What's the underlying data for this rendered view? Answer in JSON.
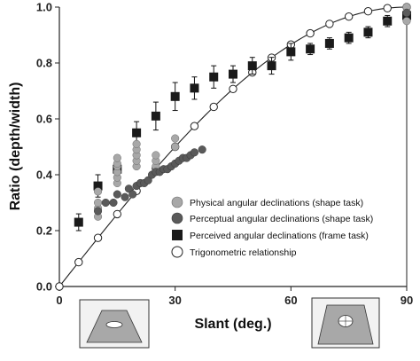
{
  "chart_data": {
    "type": "scatter",
    "xlabel": "Slant (deg.)",
    "ylabel": "Ratio (depth/width)",
    "xlim": [
      0,
      90
    ],
    "ylim": [
      0.0,
      1.0
    ],
    "x_ticks": [
      0,
      30,
      60,
      90
    ],
    "y_ticks": [
      0.0,
      0.2,
      0.4,
      0.6,
      0.8,
      1.0
    ],
    "x_tick_labels": [
      "0",
      "30",
      "60",
      "90"
    ],
    "y_tick_labels": [
      "0.0",
      "0.2",
      "0.4",
      "0.6",
      "0.8",
      "1.0"
    ],
    "legend_position": "bottom-right",
    "colors": {
      "physical": "#a8a8a8",
      "perceptual": "#5a5a5a",
      "perceived": "#1a1a1a",
      "trig": "#ffffff"
    },
    "series": [
      {
        "name": "Physical angular declinations (shape task)",
        "marker": "circle-lightgray",
        "x": [
          10,
          10,
          10,
          10,
          15,
          15,
          15,
          15,
          15,
          15,
          20,
          20,
          20,
          20,
          20,
          25,
          25,
          25,
          30,
          30,
          90,
          90,
          90
        ],
        "y": [
          0.25,
          0.28,
          0.3,
          0.34,
          0.37,
          0.39,
          0.41,
          0.43,
          0.44,
          0.46,
          0.43,
          0.45,
          0.47,
          0.49,
          0.51,
          0.43,
          0.45,
          0.47,
          0.5,
          0.53,
          0.95,
          0.98,
          1.0
        ]
      },
      {
        "name": "Perceptual angular declinations (shape task)",
        "marker": "circle-darkgray",
        "x": [
          10,
          12,
          14,
          15,
          17,
          18,
          19,
          20,
          21,
          22,
          23,
          24,
          25,
          26,
          27,
          28,
          29,
          30,
          31,
          32,
          33,
          34,
          35,
          37,
          90
        ],
        "y": [
          0.27,
          0.3,
          0.3,
          0.33,
          0.32,
          0.35,
          0.33,
          0.36,
          0.37,
          0.37,
          0.38,
          0.4,
          0.41,
          0.41,
          0.42,
          0.42,
          0.43,
          0.44,
          0.45,
          0.46,
          0.46,
          0.47,
          0.48,
          0.49,
          0.98
        ]
      },
      {
        "name": "Perceived angular declinations (frame task)",
        "marker": "square-black",
        "x": [
          5,
          10,
          15,
          20,
          25,
          30,
          35,
          40,
          45,
          50,
          55,
          60,
          65,
          70,
          75,
          80,
          85,
          90
        ],
        "y": [
          0.23,
          0.36,
          0.42,
          0.55,
          0.61,
          0.68,
          0.71,
          0.75,
          0.76,
          0.79,
          0.79,
          0.84,
          0.85,
          0.87,
          0.89,
          0.91,
          0.95,
          0.97
        ],
        "error": [
          0.03,
          0.04,
          0.05,
          0.04,
          0.05,
          0.05,
          0.04,
          0.04,
          0.03,
          0.03,
          0.03,
          0.03,
          0.02,
          0.02,
          0.02,
          0.02,
          0.02,
          0.02
        ]
      },
      {
        "name": "Trigonometric relationship",
        "marker": "circle-open",
        "x": [
          0,
          5,
          10,
          15,
          20,
          25,
          30,
          35,
          40,
          45,
          50,
          55,
          60,
          65,
          70,
          75,
          80,
          85,
          90
        ],
        "y": [
          0.0,
          0.087,
          0.174,
          0.259,
          0.342,
          0.423,
          0.5,
          0.574,
          0.643,
          0.707,
          0.766,
          0.819,
          0.866,
          0.906,
          0.94,
          0.966,
          0.985,
          0.996,
          1.0
        ]
      }
    ]
  }
}
